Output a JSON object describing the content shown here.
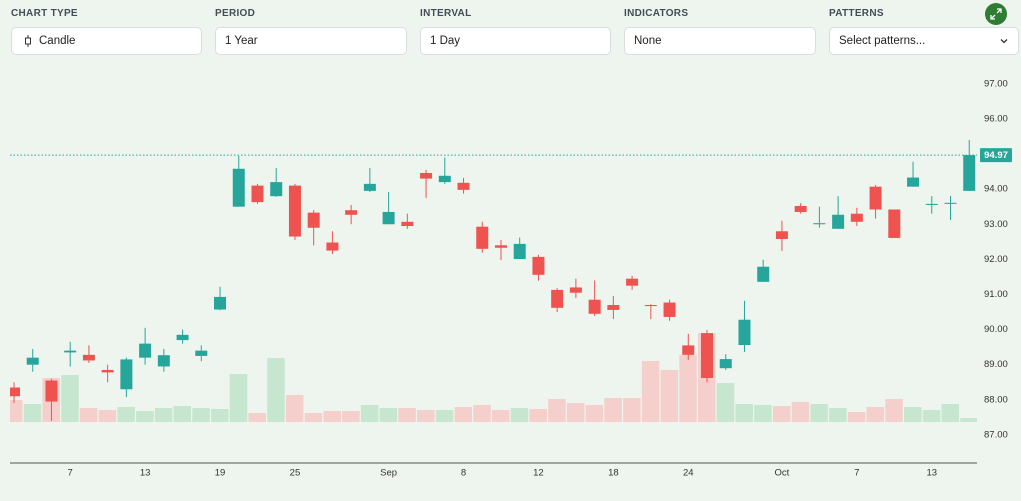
{
  "toolbar": [
    {
      "label": "CHART TYPE",
      "value": "Candle"
    },
    {
      "label": "PERIOD",
      "value": "1 Year"
    },
    {
      "label": "INTERVAL",
      "value": "1 Day"
    },
    {
      "label": "INDICATORS",
      "value": "None"
    },
    {
      "label": "PATTERNS",
      "value": "Select patterns..."
    }
  ],
  "chart_data": {
    "type": "candlestick",
    "categories": [
      null,
      null,
      null,
      "7",
      null,
      null,
      null,
      "13",
      null,
      null,
      null,
      "19",
      null,
      null,
      null,
      "25",
      null,
      null,
      null,
      null,
      "Sep",
      null,
      null,
      null,
      "8",
      null,
      null,
      null,
      "12",
      null,
      null,
      null,
      "18",
      null,
      null,
      null,
      "24",
      null,
      null,
      null,
      null,
      "Oct",
      null,
      null,
      null,
      "7",
      null,
      null,
      null,
      "13",
      null,
      null
    ],
    "open": [
      88.35,
      89.0,
      88.55,
      89.35,
      89.28,
      88.85,
      88.3,
      89.2,
      88.95,
      89.7,
      89.25,
      90.57,
      93.5,
      94.1,
      93.8,
      94.1,
      93.33,
      92.48,
      93.4,
      93.95,
      93.0,
      93.07,
      94.46,
      94.2,
      94.18,
      92.93,
      92.4,
      92.01,
      92.07,
      91.13,
      91.2,
      90.85,
      90.7,
      91.45,
      90.7,
      90.77,
      89.55,
      89.9,
      88.9,
      89.56,
      91.36,
      92.8,
      93.52,
      93.0,
      92.87,
      93.3,
      94.07,
      93.42,
      94.07,
      93.55,
      93.58,
      93.95
    ],
    "high": [
      88.5,
      89.45,
      88.6,
      89.65,
      89.55,
      89.0,
      89.2,
      90.05,
      89.45,
      90.0,
      89.55,
      91.22,
      94.95,
      94.15,
      94.6,
      94.15,
      93.4,
      92.8,
      93.55,
      94.6,
      93.92,
      93.3,
      94.55,
      94.9,
      94.32,
      93.07,
      92.55,
      92.62,
      92.13,
      91.18,
      91.45,
      91.4,
      90.96,
      91.53,
      90.72,
      90.85,
      89.88,
      89.99,
      89.3,
      90.82,
      91.99,
      93.1,
      93.6,
      93.5,
      93.8,
      93.47,
      94.12,
      93.42,
      94.78,
      93.8,
      93.8,
      95.4
    ],
    "low": [
      87.9,
      88.8,
      87.4,
      88.95,
      89.05,
      88.5,
      88.08,
      89.0,
      88.8,
      89.6,
      89.1,
      90.55,
      93.5,
      93.58,
      93.78,
      92.55,
      92.4,
      92.15,
      93.0,
      93.92,
      93.0,
      92.87,
      93.75,
      94.15,
      93.87,
      92.19,
      91.98,
      92.01,
      91.39,
      90.5,
      90.9,
      90.39,
      90.3,
      91.13,
      90.3,
      90.25,
      89.13,
      88.5,
      88.85,
      89.36,
      91.36,
      92.24,
      93.3,
      92.9,
      92.87,
      92.95,
      93.16,
      92.61,
      94.07,
      93.3,
      93.12,
      93.95
    ],
    "close": [
      88.1,
      89.2,
      87.95,
      89.4,
      89.12,
      88.78,
      89.15,
      89.6,
      89.27,
      89.85,
      89.4,
      90.93,
      94.58,
      93.63,
      94.2,
      92.65,
      92.9,
      92.25,
      93.27,
      94.15,
      93.35,
      92.95,
      94.3,
      94.38,
      93.98,
      92.3,
      92.33,
      92.44,
      91.56,
      90.62,
      91.05,
      90.45,
      90.56,
      91.25,
      90.67,
      90.36,
      89.28,
      88.62,
      89.16,
      90.28,
      91.79,
      92.58,
      93.35,
      93.03,
      93.27,
      93.07,
      93.42,
      92.61,
      94.33,
      93.58,
      93.61,
      94.97
    ],
    "volume": [
      22,
      18,
      44,
      47,
      14,
      12,
      15,
      11,
      14,
      16,
      14,
      13,
      48,
      9,
      64,
      27,
      9,
      11,
      11,
      17,
      14,
      14,
      12,
      12,
      15,
      17,
      12,
      14,
      13,
      23,
      19,
      17,
      24,
      24,
      61,
      52,
      67,
      89,
      39,
      18,
      17,
      16,
      20,
      18,
      14,
      10,
      15,
      23,
      15,
      12,
      18,
      4
    ],
    "up_color": "#26a69a",
    "down_color": "#ef5350",
    "up_volume_color": "#c6e6cf",
    "down_volume_color": "#f4cfcc",
    "ylim": [
      86.2,
      97.45
    ],
    "yticks": [
      {
        "value": 87,
        "label": "87.00"
      },
      {
        "value": 88,
        "label": "88.00"
      },
      {
        "value": 89,
        "label": "89.00"
      },
      {
        "value": 90,
        "label": "90.00"
      },
      {
        "value": 91,
        "label": "91.00"
      },
      {
        "value": 92,
        "label": "92.00"
      },
      {
        "value": 93,
        "label": "93.00"
      },
      {
        "value": 94,
        "label": "94.00"
      },
      {
        "value": 95,
        "label": "95.00"
      },
      {
        "value": 96,
        "label": "96.00"
      },
      {
        "value": 97,
        "label": "97.00"
      }
    ],
    "last_price": 94.97
  }
}
